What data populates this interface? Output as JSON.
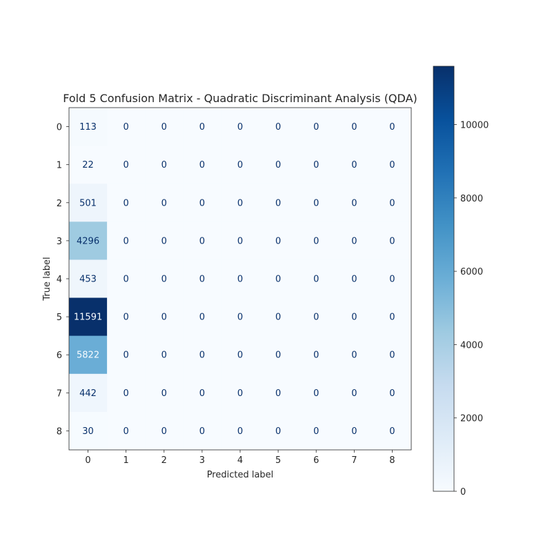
{
  "chart_data": {
    "type": "heatmap",
    "title": "Fold 5 Confusion Matrix - Quadratic Discriminant Analysis (QDA)",
    "xlabel": "Predicted label",
    "ylabel": "True label",
    "x_tick_labels": [
      "0",
      "1",
      "2",
      "3",
      "4",
      "5",
      "6",
      "7",
      "8"
    ],
    "y_tick_labels": [
      "0",
      "1",
      "2",
      "3",
      "4",
      "5",
      "6",
      "7",
      "8"
    ],
    "matrix": [
      [
        113,
        0,
        0,
        0,
        0,
        0,
        0,
        0,
        0
      ],
      [
        22,
        0,
        0,
        0,
        0,
        0,
        0,
        0,
        0
      ],
      [
        501,
        0,
        0,
        0,
        0,
        0,
        0,
        0,
        0
      ],
      [
        4296,
        0,
        0,
        0,
        0,
        0,
        0,
        0,
        0
      ],
      [
        453,
        0,
        0,
        0,
        0,
        0,
        0,
        0,
        0
      ],
      [
        11591,
        0,
        0,
        0,
        0,
        0,
        0,
        0,
        0
      ],
      [
        5822,
        0,
        0,
        0,
        0,
        0,
        0,
        0,
        0
      ],
      [
        442,
        0,
        0,
        0,
        0,
        0,
        0,
        0,
        0
      ],
      [
        30,
        0,
        0,
        0,
        0,
        0,
        0,
        0,
        0
      ]
    ],
    "colormap": "Blues",
    "colorbar": {
      "range": [
        0,
        11591
      ],
      "ticks": [
        0,
        2000,
        4000,
        6000,
        8000,
        10000
      ]
    },
    "grid": false
  }
}
